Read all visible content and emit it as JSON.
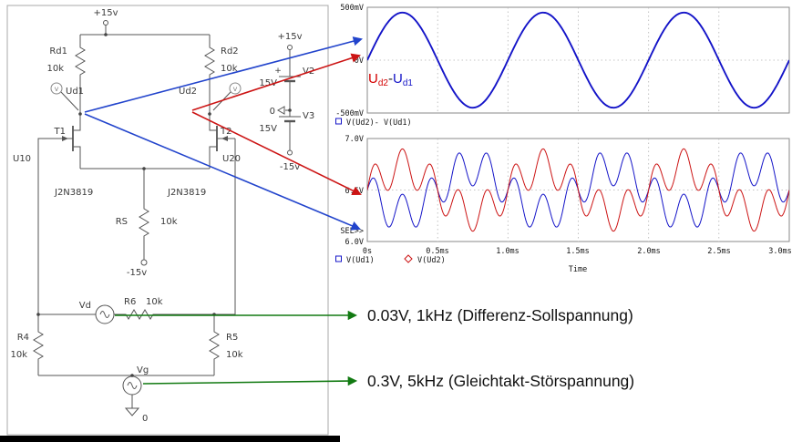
{
  "schematic": {
    "vcc_label": "+15v",
    "rd1": "Rd1",
    "rd1_val": "10k",
    "rd2": "Rd2",
    "rd2_val": "10k",
    "probe_v": "V",
    "ud1": "Ud1",
    "ud2": "Ud2",
    "t1": "T1",
    "t2": "T2",
    "u10": "U10",
    "u20": "U20",
    "q1": "J2N3819",
    "q2": "J2N3819",
    "rs": "RS",
    "rs_val": "10k",
    "vee_label": "-15v",
    "vd": "Vd",
    "r6": "R6",
    "r6_val": "10k",
    "r4": "R4",
    "r4_val": "10k",
    "r5": "R5",
    "r5_val": "10k",
    "vg": "Vg",
    "gnd_zero": "0",
    "supply": {
      "plus_rail": "+15v",
      "v2_name": "V2",
      "v2_value": "15V",
      "plus_sign": "+",
      "zero_node": "0",
      "v3_name": "V3",
      "v3_value": "15V",
      "minus_rail": "-15v"
    }
  },
  "expr_label": {
    "u_red": "U",
    "sub_red": "d2",
    "minus": "-",
    "u_blue": "U",
    "sub_blue": "d1"
  },
  "annotations": {
    "diff_source": "0.03V, 1kHz (Differenz-Sollspannung)",
    "common_source": "0.3V, 5kHz (Gleichtakt-Störspannung)"
  },
  "chart_data": [
    {
      "type": "line",
      "title": "",
      "x_range_ms": [
        0,
        3
      ],
      "ylim_V": [
        -0.5,
        0.5
      ],
      "y_ticks": [
        "500mV",
        "0V",
        "-500mV"
      ],
      "legend": [
        "V(Ud2)- V(Ud1)"
      ],
      "grid": "dotted, 0.5ms spacing",
      "series": [
        {
          "name": "V(Ud2)-V(Ud1)",
          "color": "#1414c8",
          "offset_V": 0,
          "components": [
            {
              "freq_kHz": 1,
              "amp_V": 0.45,
              "phase_deg": 0
            }
          ]
        }
      ]
    },
    {
      "type": "line",
      "title": "",
      "x_range_ms": [
        0,
        3
      ],
      "ylim_V": [
        6.0,
        7.0
      ],
      "y_ticks": [
        "7.0V",
        "6.5V",
        "6.0V"
      ],
      "sel_label": "SEL>>",
      "x_ticks": [
        "0s",
        "0.5ms",
        "1.0ms",
        "1.5ms",
        "2.0ms",
        "2.5ms",
        "3.0ms"
      ],
      "xlabel": "Time",
      "legend": [
        "V(Ud1)",
        "V(Ud2)"
      ],
      "grid": "dotted, 0.5ms spacing",
      "series": [
        {
          "name": "V(Ud1)",
          "color": "#1414c8",
          "offset_V": 6.5,
          "components": [
            {
              "freq_kHz": 1,
              "amp_V": -0.22,
              "phase_deg": 0
            },
            {
              "freq_kHz": 5,
              "amp_V": 0.18,
              "phase_deg": 0
            }
          ]
        },
        {
          "name": "V(Ud2)",
          "color": "#cc1414",
          "offset_V": 6.5,
          "components": [
            {
              "freq_kHz": 1,
              "amp_V": 0.22,
              "phase_deg": 0
            },
            {
              "freq_kHz": 5,
              "amp_V": 0.18,
              "phase_deg": 0
            }
          ]
        }
      ]
    }
  ]
}
